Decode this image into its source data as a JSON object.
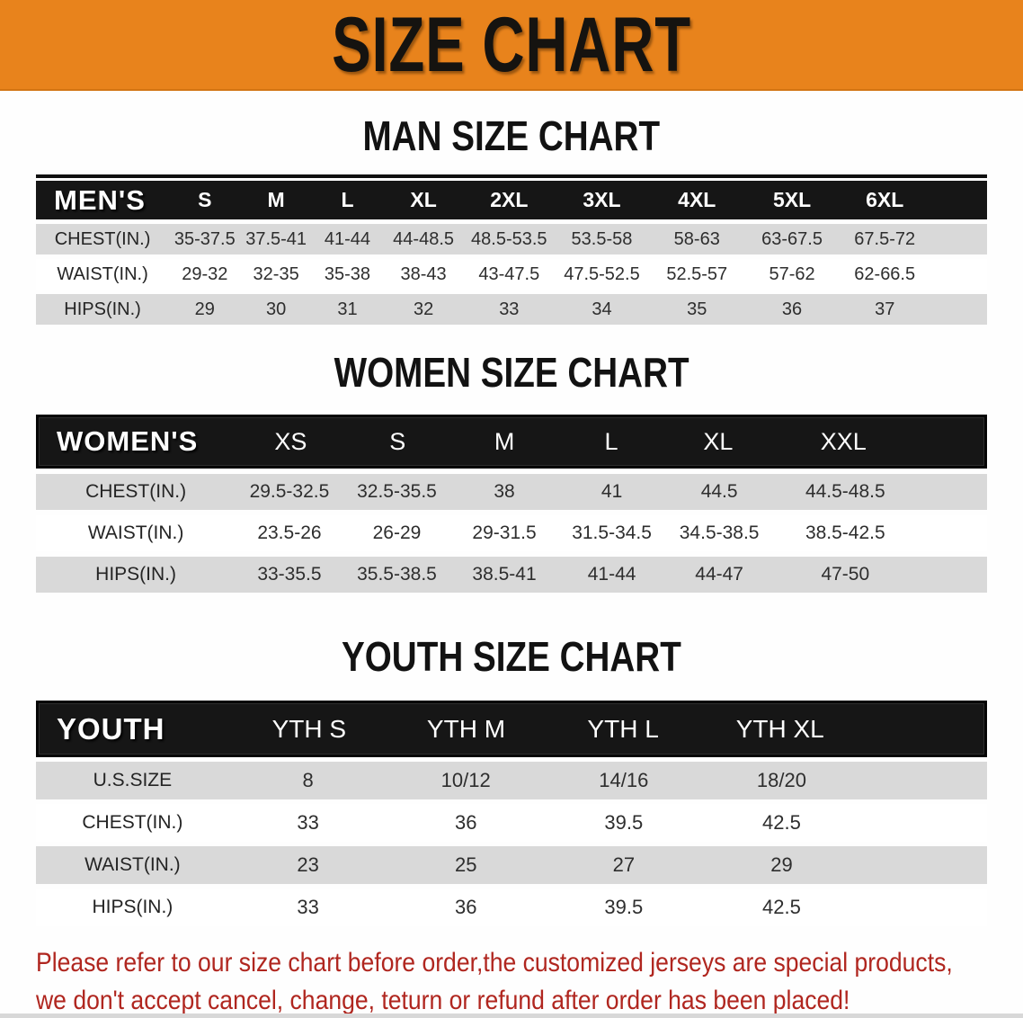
{
  "banner": {
    "title": "SIZE CHART",
    "bg_color": "#e8831c"
  },
  "colors": {
    "banner_bg": "#e8831c",
    "header_bar": "#161616",
    "row_gray": "#d9d9d9",
    "red_text": "#b0261f"
  },
  "men": {
    "section_title": "MAN SIZE CHART",
    "corner_label": "MEN'S",
    "sizes": [
      "S",
      "M",
      "L",
      "XL",
      "2XL",
      "3XL",
      "4XL",
      "5XL",
      "6XL"
    ],
    "rows": [
      {
        "label": "CHEST(IN.)",
        "values": [
          "35-37.5",
          "37.5-41",
          "41-44",
          "44-48.5",
          "48.5-53.5",
          "53.5-58",
          "58-63",
          "63-67.5",
          "67.5-72"
        ]
      },
      {
        "label": "WAIST(IN.)",
        "values": [
          "29-32",
          "32-35",
          "35-38",
          "38-43",
          "43-47.5",
          "47.5-52.5",
          "52.5-57",
          "57-62",
          "62-66.5"
        ]
      },
      {
        "label": "HIPS(IN.)",
        "values": [
          "29",
          "30",
          "31",
          "32",
          "33",
          "34",
          "35",
          "36",
          "37"
        ]
      }
    ]
  },
  "women": {
    "section_title": "WOMEN SIZE CHART",
    "corner_label": "WOMEN'S",
    "sizes": [
      "XS",
      "S",
      "M",
      "L",
      "XL",
      "XXL"
    ],
    "rows": [
      {
        "label": "CHEST(IN.)",
        "values": [
          "29.5-32.5",
          "32.5-35.5",
          "38",
          "41",
          "44.5",
          "44.5-48.5"
        ]
      },
      {
        "label": "WAIST(IN.)",
        "values": [
          "23.5-26",
          "26-29",
          "29-31.5",
          "31.5-34.5",
          "34.5-38.5",
          "38.5-42.5"
        ]
      },
      {
        "label": "HIPS(IN.)",
        "values": [
          "33-35.5",
          "35.5-38.5",
          "38.5-41",
          "41-44",
          "44-47",
          "47-50"
        ]
      }
    ]
  },
  "youth": {
    "section_title": "YOUTH SIZE CHART",
    "corner_label": "YOUTH",
    "sizes": [
      "YTH S",
      "YTH M",
      "YTH L",
      "YTH XL"
    ],
    "rows": [
      {
        "label": "U.S.SIZE",
        "values": [
          "8",
          "10/12",
          "14/16",
          "18/20"
        ]
      },
      {
        "label": "CHEST(IN.)",
        "values": [
          "33",
          "36",
          "39.5",
          "42.5"
        ]
      },
      {
        "label": "WAIST(IN.)",
        "values": [
          "23",
          "25",
          "27",
          "29"
        ]
      },
      {
        "label": "HIPS(IN.)",
        "values": [
          "33",
          "36",
          "39.5",
          "42.5"
        ]
      }
    ]
  },
  "disclaimer": {
    "line1": "Please refer to our size chart before order,the customized jerseys are special products,",
    "line2": "we don't accept cancel, change, teturn or refund after order has been placed!"
  }
}
